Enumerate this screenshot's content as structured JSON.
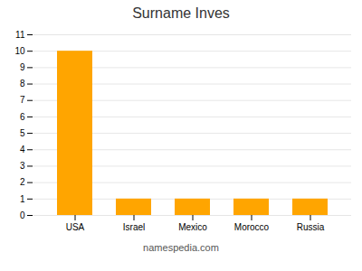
{
  "chart_data": {
    "type": "bar",
    "title": "Surname Inves",
    "categories": [
      "USA",
      "Israel",
      "Mexico",
      "Morocco",
      "Russia"
    ],
    "values": [
      10,
      1,
      1,
      1,
      1
    ],
    "color": "#FFA500",
    "ylim": [
      0,
      11
    ],
    "yticks": [
      0,
      1,
      2,
      3,
      4,
      5,
      6,
      7,
      8,
      9,
      10,
      11
    ],
    "grid": true,
    "caption": "namespedia.com"
  }
}
